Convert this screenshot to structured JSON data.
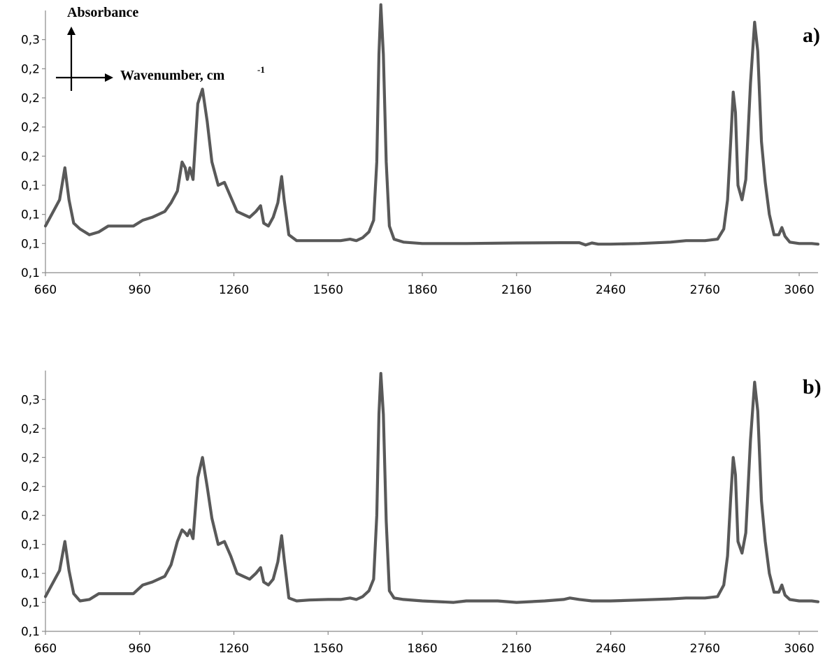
{
  "chart_data": [
    {
      "type": "line",
      "panel_label": "a)",
      "xlabel": "Wavenumber, cm",
      "xlabel_sup": "-1",
      "ylabel": "Absorbance",
      "xlim": [
        660,
        3120
      ],
      "ylim": [
        0,
        9
      ],
      "x_ticks": [
        "660",
        "960",
        "1260",
        "1560",
        "1860",
        "2160",
        "2460",
        "2760",
        "3060"
      ],
      "y_ticks": [
        "0,1",
        "0,1",
        "0,1",
        "0,1",
        "0,2",
        "0,2",
        "0,2",
        "0,2",
        "0,3"
      ],
      "grid": false,
      "series": [
        {
          "color": "#595959",
          "points": [
            [
              660,
              1.6
            ],
            [
              690,
              2.2
            ],
            [
              705,
              2.5
            ],
            [
              722,
              3.6
            ],
            [
              735,
              2.5
            ],
            [
              750,
              1.7
            ],
            [
              770,
              1.5
            ],
            [
              800,
              1.3
            ],
            [
              830,
              1.4
            ],
            [
              860,
              1.6
            ],
            [
              900,
              1.6
            ],
            [
              940,
              1.6
            ],
            [
              970,
              1.8
            ],
            [
              1000,
              1.9
            ],
            [
              1040,
              2.1
            ],
            [
              1060,
              2.4
            ],
            [
              1080,
              2.8
            ],
            [
              1095,
              3.8
            ],
            [
              1105,
              3.6
            ],
            [
              1112,
              3.2
            ],
            [
              1120,
              3.6
            ],
            [
              1130,
              3.2
            ],
            [
              1145,
              5.8
            ],
            [
              1160,
              6.3
            ],
            [
              1175,
              5.2
            ],
            [
              1190,
              3.8
            ],
            [
              1210,
              3.0
            ],
            [
              1230,
              3.1
            ],
            [
              1250,
              2.6
            ],
            [
              1270,
              2.1
            ],
            [
              1290,
              2.0
            ],
            [
              1310,
              1.9
            ],
            [
              1330,
              2.1
            ],
            [
              1345,
              2.3
            ],
            [
              1355,
              1.7
            ],
            [
              1370,
              1.6
            ],
            [
              1385,
              1.9
            ],
            [
              1400,
              2.4
            ],
            [
              1412,
              3.3
            ],
            [
              1420,
              2.5
            ],
            [
              1435,
              1.3
            ],
            [
              1460,
              1.1
            ],
            [
              1500,
              1.1
            ],
            [
              1560,
              1.1
            ],
            [
              1600,
              1.1
            ],
            [
              1630,
              1.15
            ],
            [
              1650,
              1.1
            ],
            [
              1670,
              1.2
            ],
            [
              1690,
              1.4
            ],
            [
              1705,
              1.8
            ],
            [
              1715,
              3.8
            ],
            [
              1722,
              7.5
            ],
            [
              1728,
              9.2
            ],
            [
              1736,
              7.5
            ],
            [
              1745,
              3.8
            ],
            [
              1755,
              1.6
            ],
            [
              1770,
              1.15
            ],
            [
              1800,
              1.05
            ],
            [
              1860,
              1.0
            ],
            [
              2000,
              1.0
            ],
            [
              2160,
              1.02
            ],
            [
              2300,
              1.03
            ],
            [
              2360,
              1.03
            ],
            [
              2380,
              0.95
            ],
            [
              2400,
              1.02
            ],
            [
              2420,
              0.98
            ],
            [
              2460,
              0.98
            ],
            [
              2550,
              1.0
            ],
            [
              2650,
              1.05
            ],
            [
              2700,
              1.1
            ],
            [
              2760,
              1.1
            ],
            [
              2800,
              1.15
            ],
            [
              2820,
              1.5
            ],
            [
              2832,
              2.5
            ],
            [
              2842,
              4.5
            ],
            [
              2850,
              6.2
            ],
            [
              2857,
              5.5
            ],
            [
              2865,
              3.0
            ],
            [
              2878,
              2.5
            ],
            [
              2890,
              3.2
            ],
            [
              2905,
              6.5
            ],
            [
              2918,
              8.6
            ],
            [
              2928,
              7.6
            ],
            [
              2940,
              4.5
            ],
            [
              2952,
              3.1
            ],
            [
              2965,
              2.0
            ],
            [
              2980,
              1.3
            ],
            [
              2995,
              1.3
            ],
            [
              3005,
              1.55
            ],
            [
              3015,
              1.25
            ],
            [
              3030,
              1.05
            ],
            [
              3060,
              1.0
            ],
            [
              3100,
              1.0
            ],
            [
              3120,
              0.98
            ]
          ]
        }
      ]
    },
    {
      "type": "line",
      "panel_label": "b)",
      "xlim": [
        660,
        3120
      ],
      "ylim": [
        0,
        9
      ],
      "x_ticks": [
        "660",
        "960",
        "1260",
        "1560",
        "1860",
        "2160",
        "2460",
        "2760",
        "3060"
      ],
      "y_ticks": [
        "0,1",
        "0,1",
        "0,1",
        "0,1",
        "0,2",
        "0,2",
        "0,2",
        "0,2",
        "0,3"
      ],
      "grid": false,
      "series": [
        {
          "color": "#595959",
          "points": [
            [
              660,
              1.2
            ],
            [
              690,
              1.8
            ],
            [
              705,
              2.1
            ],
            [
              722,
              3.1
            ],
            [
              735,
              2.1
            ],
            [
              750,
              1.3
            ],
            [
              770,
              1.05
            ],
            [
              800,
              1.1
            ],
            [
              830,
              1.3
            ],
            [
              860,
              1.3
            ],
            [
              900,
              1.3
            ],
            [
              940,
              1.3
            ],
            [
              970,
              1.6
            ],
            [
              1000,
              1.7
            ],
            [
              1040,
              1.9
            ],
            [
              1060,
              2.3
            ],
            [
              1080,
              3.1
            ],
            [
              1095,
              3.5
            ],
            [
              1105,
              3.4
            ],
            [
              1112,
              3.3
            ],
            [
              1120,
              3.5
            ],
            [
              1130,
              3.2
            ],
            [
              1145,
              5.3
            ],
            [
              1160,
              6.0
            ],
            [
              1175,
              5.0
            ],
            [
              1190,
              3.9
            ],
            [
              1210,
              3.0
            ],
            [
              1230,
              3.1
            ],
            [
              1250,
              2.6
            ],
            [
              1270,
              2.0
            ],
            [
              1290,
              1.9
            ],
            [
              1310,
              1.8
            ],
            [
              1330,
              2.0
            ],
            [
              1345,
              2.2
            ],
            [
              1355,
              1.7
            ],
            [
              1370,
              1.6
            ],
            [
              1385,
              1.8
            ],
            [
              1400,
              2.4
            ],
            [
              1412,
              3.3
            ],
            [
              1420,
              2.5
            ],
            [
              1435,
              1.15
            ],
            [
              1460,
              1.05
            ],
            [
              1500,
              1.08
            ],
            [
              1560,
              1.1
            ],
            [
              1600,
              1.1
            ],
            [
              1630,
              1.15
            ],
            [
              1650,
              1.1
            ],
            [
              1670,
              1.2
            ],
            [
              1690,
              1.4
            ],
            [
              1705,
              1.8
            ],
            [
              1715,
              4.0
            ],
            [
              1722,
              7.5
            ],
            [
              1728,
              8.9
            ],
            [
              1736,
              7.5
            ],
            [
              1745,
              3.8
            ],
            [
              1755,
              1.4
            ],
            [
              1770,
              1.15
            ],
            [
              1800,
              1.1
            ],
            [
              1860,
              1.05
            ],
            [
              1960,
              1.0
            ],
            [
              2000,
              1.05
            ],
            [
              2100,
              1.05
            ],
            [
              2160,
              1.0
            ],
            [
              2250,
              1.05
            ],
            [
              2310,
              1.1
            ],
            [
              2330,
              1.15
            ],
            [
              2360,
              1.1
            ],
            [
              2400,
              1.05
            ],
            [
              2460,
              1.05
            ],
            [
              2550,
              1.08
            ],
            [
              2650,
              1.12
            ],
            [
              2700,
              1.15
            ],
            [
              2760,
              1.15
            ],
            [
              2800,
              1.2
            ],
            [
              2820,
              1.6
            ],
            [
              2832,
              2.6
            ],
            [
              2842,
              4.6
            ],
            [
              2850,
              6.0
            ],
            [
              2857,
              5.4
            ],
            [
              2865,
              3.1
            ],
            [
              2878,
              2.7
            ],
            [
              2890,
              3.4
            ],
            [
              2905,
              6.6
            ],
            [
              2918,
              8.6
            ],
            [
              2928,
              7.6
            ],
            [
              2940,
              4.5
            ],
            [
              2952,
              3.1
            ],
            [
              2965,
              2.0
            ],
            [
              2980,
              1.35
            ],
            [
              2995,
              1.35
            ],
            [
              3005,
              1.6
            ],
            [
              3015,
              1.25
            ],
            [
              3030,
              1.1
            ],
            [
              3060,
              1.05
            ],
            [
              3100,
              1.05
            ],
            [
              3120,
              1.02
            ]
          ]
        }
      ]
    }
  ]
}
